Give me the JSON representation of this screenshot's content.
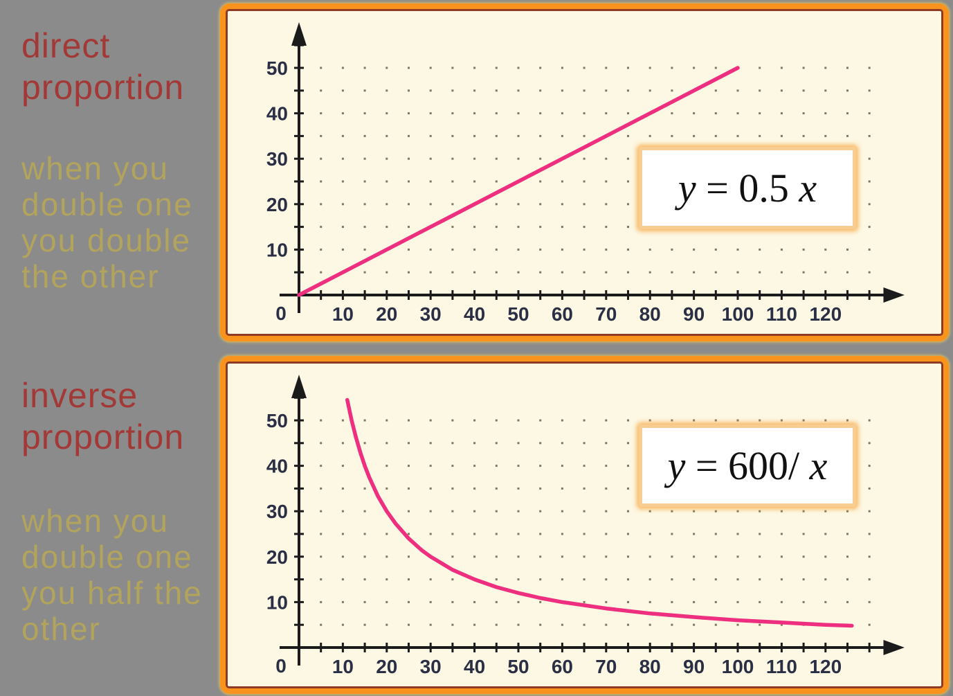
{
  "colors": {
    "background": "#8b8b8b",
    "title_text": "#a23936",
    "note_text": "#b2a45c",
    "panel_border_orange": "#f8941d",
    "panel_inner_border": "#8e3b26",
    "panel_bg": "#fdf8e4",
    "axis": "#1b1b1b",
    "tick_label": "#2b2f45",
    "grid_dot": "#666148",
    "curve_pink": "#ee2e7e",
    "equation_border": "#f8cd92",
    "equation_glow": "rgba(246,158,44,0.75)",
    "equation_bg": "#ffffff",
    "equation_text": "#111111"
  },
  "left_column": {
    "sections": [
      {
        "title_lines": [
          "direct",
          "proportion"
        ],
        "note_lines": [
          "when you",
          "double one",
          "you double",
          "the other"
        ]
      },
      {
        "title_lines": [
          "inverse",
          "proportion"
        ],
        "note_lines": [
          "when you",
          "double one",
          "you half the",
          "other"
        ]
      }
    ]
  },
  "chart_data": [
    {
      "type": "line",
      "title": "direct proportion",
      "equation": {
        "lhs": "y",
        "mid": " = 0.5 ",
        "rhs": "x",
        "full": "y = 0.5 x"
      },
      "xlabel": "",
      "ylabel": "",
      "x_label_ticks": [
        10,
        20,
        30,
        40,
        50,
        60,
        70,
        80,
        90,
        100,
        110,
        120
      ],
      "y_label_ticks": [
        10,
        20,
        30,
        40,
        50
      ],
      "minor_tick_step": 5,
      "x_tick_max": 130,
      "y_tick_max": 55,
      "xlim": [
        0,
        138
      ],
      "ylim": [
        0,
        60
      ],
      "origin_label": "0",
      "grid": {
        "style": "dots",
        "step": 5,
        "x_max": 130,
        "y_max": 50
      },
      "legend": "none",
      "series": [
        {
          "name": "y = 0.5x",
          "points": [
            [
              0,
              0
            ],
            [
              100,
              50
            ]
          ]
        }
      ]
    },
    {
      "type": "line",
      "title": "inverse proportion",
      "equation": {
        "lhs": "y",
        "mid": " = 600/ ",
        "rhs": "x",
        "full": "y = 600/ x"
      },
      "xlabel": "",
      "ylabel": "",
      "x_label_ticks": [
        10,
        20,
        30,
        40,
        50,
        60,
        70,
        80,
        90,
        100,
        110,
        120
      ],
      "y_label_ticks": [
        10,
        20,
        30,
        40,
        50
      ],
      "minor_tick_step": 5,
      "x_tick_max": 130,
      "y_tick_max": 55,
      "xlim": [
        0,
        138
      ],
      "ylim": [
        0,
        60
      ],
      "origin_label": "0",
      "grid": {
        "style": "dots",
        "step": 5,
        "x_max": 130,
        "y_max": 50
      },
      "legend": "none",
      "series": [
        {
          "name": "y = 600/x",
          "points": [
            [
              11,
              54.5
            ],
            [
              12,
              50
            ],
            [
              13,
              46.2
            ],
            [
              14,
              42.9
            ],
            [
              15,
              40
            ],
            [
              16,
              37.5
            ],
            [
              18,
              33.3
            ],
            [
              20,
              30
            ],
            [
              22,
              27.3
            ],
            [
              25,
              24
            ],
            [
              28,
              21.4
            ],
            [
              30,
              20
            ],
            [
              35,
              17.1
            ],
            [
              40,
              15
            ],
            [
              45,
              13.3
            ],
            [
              50,
              12
            ],
            [
              55,
              10.9
            ],
            [
              60,
              10
            ],
            [
              70,
              8.6
            ],
            [
              80,
              7.5
            ],
            [
              90,
              6.7
            ],
            [
              100,
              6
            ],
            [
              110,
              5.5
            ],
            [
              120,
              5
            ],
            [
              126,
              4.8
            ]
          ]
        }
      ]
    }
  ]
}
